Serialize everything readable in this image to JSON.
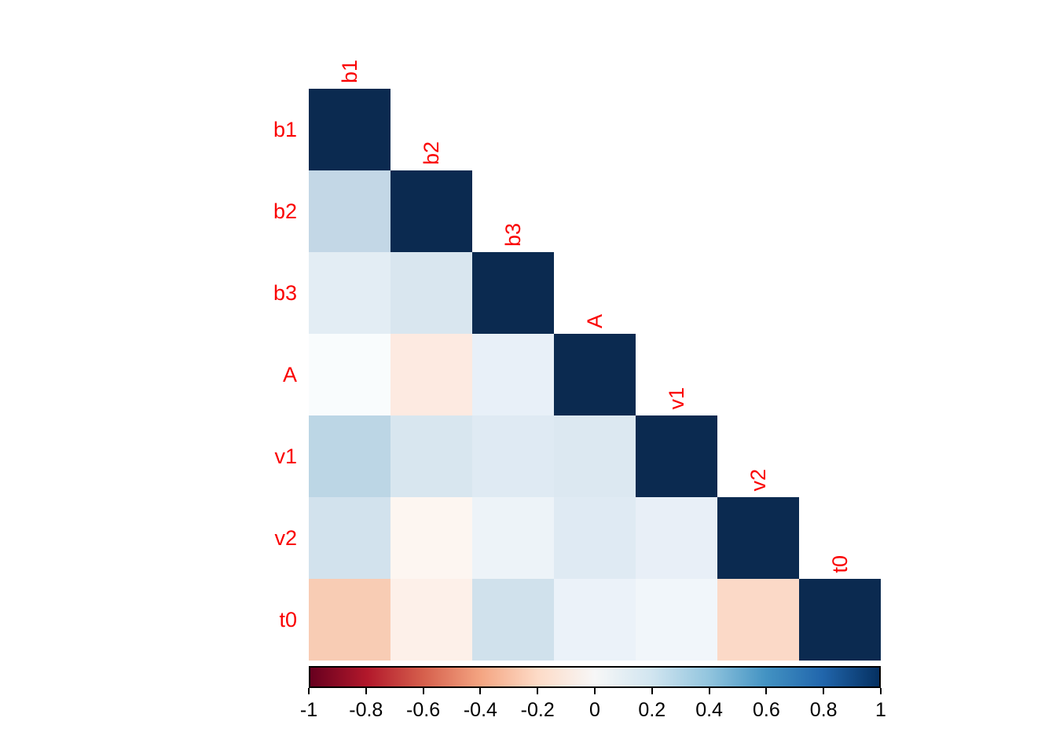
{
  "figure": {
    "background_color": "#ffffff",
    "label_color": "#fa0000",
    "tick_text_color": "#000000",
    "colorbar_border_color": "#000000"
  },
  "chart_data": {
    "type": "heatmap",
    "subtype": "correlation-matrix-lower-triangle",
    "title": "",
    "variables": [
      "b1",
      "b2",
      "b3",
      "A",
      "v1",
      "v2",
      "t0"
    ],
    "matrix": [
      [
        1
      ],
      [
        0.28,
        1
      ],
      [
        0.13,
        0.19,
        1
      ],
      [
        0.02,
        -0.1,
        0.1,
        1
      ],
      [
        0.31,
        0.18,
        0.14,
        0.16,
        1
      ],
      [
        0.21,
        -0.03,
        0.08,
        0.14,
        0.1,
        1
      ],
      [
        -0.28,
        -0.06,
        0.22,
        0.09,
        0.05,
        -0.2,
        1
      ]
    ],
    "cell_colors": [
      [
        "#0b2a50"
      ],
      [
        "#c3d7e6",
        "#0b2a50"
      ],
      [
        "#e3edf4",
        "#d9e6ef",
        "#0b2a50"
      ],
      [
        "#f9fcfd",
        "#fdeae1",
        "#e8f0f8",
        "#0b2a50"
      ],
      [
        "#bcd6e5",
        "#d8e6ef",
        "#dfeaf3",
        "#dce8f1",
        "#0b2a50"
      ],
      [
        "#d2e2ed",
        "#fdf6f1",
        "#edf3f8",
        "#dfeaf3",
        "#e8eff7",
        "#0b2a50"
      ],
      [
        "#f8ccb4",
        "#fdf0e9",
        "#d0e1ec",
        "#ebf2f9",
        "#f1f6fa",
        "#fbd9c7",
        "#0b2a50"
      ]
    ],
    "colormap": "RdBu",
    "legend_position": "bottom",
    "grid": false,
    "colorbar": {
      "min": -1,
      "max": 1,
      "tick_labels": [
        "-1",
        "-0.8",
        "-0.6",
        "-0.4",
        "-0.2",
        "0",
        "0.2",
        "0.4",
        "0.6",
        "0.8",
        "1"
      ],
      "gradient_stops": [
        "#67001F",
        "#B2182B",
        "#D6604D",
        "#F4A582",
        "#FDDBC7",
        "#F7F7F7",
        "#D1E5F0",
        "#92C5DE",
        "#4393C3",
        "#2166AC",
        "#053061"
      ]
    }
  }
}
